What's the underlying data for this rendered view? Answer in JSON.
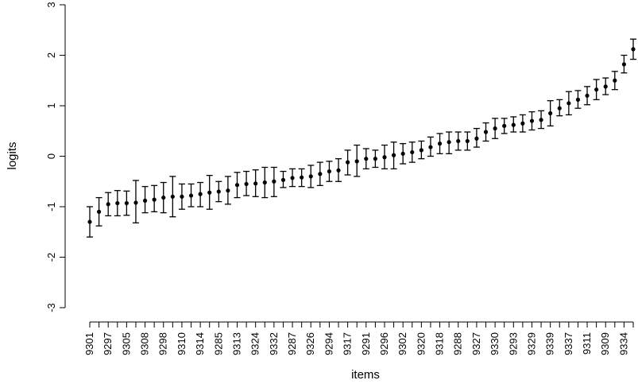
{
  "chart_data": {
    "type": "scatter",
    "style": "point-with-error-bars",
    "xlabel": "items",
    "ylabel": "logits",
    "ylim": [
      -3,
      3
    ],
    "yticks": [
      -3,
      -2,
      -1,
      0,
      1,
      2,
      3
    ],
    "x_tick_labels": [
      "9301",
      "9297",
      "9305",
      "9308",
      "9298",
      "9310",
      "9314",
      "9285",
      "9313",
      "9324",
      "9332",
      "9287",
      "9326",
      "9294",
      "9317",
      "9291",
      "9296",
      "9302",
      "9320",
      "9318",
      "9288",
      "9327",
      "9330",
      "9293",
      "9329",
      "9339",
      "9337",
      "9311",
      "9309",
      "9334"
    ],
    "grid": false,
    "legend": "none",
    "points": [
      {
        "estimate": -1.3,
        "lower": -1.6,
        "upper": -1.0
      },
      {
        "estimate": -1.1,
        "lower": -1.38,
        "upper": -0.82
      },
      {
        "estimate": -0.95,
        "lower": -1.18,
        "upper": -0.72
      },
      {
        "estimate": -0.93,
        "lower": -1.18,
        "upper": -0.68
      },
      {
        "estimate": -0.93,
        "lower": -1.17,
        "upper": -0.69
      },
      {
        "estimate": -0.92,
        "lower": -1.32,
        "upper": -0.48
      },
      {
        "estimate": -0.88,
        "lower": -1.12,
        "upper": -0.6
      },
      {
        "estimate": -0.86,
        "lower": -1.1,
        "upper": -0.58
      },
      {
        "estimate": -0.82,
        "lower": -1.12,
        "upper": -0.52
      },
      {
        "estimate": -0.8,
        "lower": -1.2,
        "upper": -0.4
      },
      {
        "estimate": -0.8,
        "lower": -1.05,
        "upper": -0.55
      },
      {
        "estimate": -0.78,
        "lower": -1.0,
        "upper": -0.55
      },
      {
        "estimate": -0.75,
        "lower": -1.0,
        "upper": -0.52
      },
      {
        "estimate": -0.72,
        "lower": -1.05,
        "upper": -0.38
      },
      {
        "estimate": -0.7,
        "lower": -0.9,
        "upper": -0.5
      },
      {
        "estimate": -0.68,
        "lower": -0.95,
        "upper": -0.4
      },
      {
        "estimate": -0.57,
        "lower": -0.82,
        "upper": -0.32
      },
      {
        "estimate": -0.55,
        "lower": -0.78,
        "upper": -0.3
      },
      {
        "estimate": -0.54,
        "lower": -0.8,
        "upper": -0.27
      },
      {
        "estimate": -0.52,
        "lower": -0.82,
        "upper": -0.22
      },
      {
        "estimate": -0.5,
        "lower": -0.8,
        "upper": -0.22
      },
      {
        "estimate": -0.47,
        "lower": -0.62,
        "upper": -0.3
      },
      {
        "estimate": -0.43,
        "lower": -0.6,
        "upper": -0.25
      },
      {
        "estimate": -0.42,
        "lower": -0.6,
        "upper": -0.25
      },
      {
        "estimate": -0.4,
        "lower": -0.62,
        "upper": -0.18
      },
      {
        "estimate": -0.35,
        "lower": -0.58,
        "upper": -0.12
      },
      {
        "estimate": -0.3,
        "lower": -0.5,
        "upper": -0.1
      },
      {
        "estimate": -0.28,
        "lower": -0.5,
        "upper": -0.05
      },
      {
        "estimate": -0.12,
        "lower": -0.37,
        "upper": 0.12
      },
      {
        "estimate": -0.1,
        "lower": -0.4,
        "upper": 0.22
      },
      {
        "estimate": -0.05,
        "lower": -0.25,
        "upper": 0.15
      },
      {
        "estimate": -0.05,
        "lower": -0.22,
        "upper": 0.12
      },
      {
        "estimate": -0.02,
        "lower": -0.25,
        "upper": 0.22
      },
      {
        "estimate": 0.02,
        "lower": -0.25,
        "upper": 0.28
      },
      {
        "estimate": 0.05,
        "lower": -0.15,
        "upper": 0.25
      },
      {
        "estimate": 0.08,
        "lower": -0.12,
        "upper": 0.28
      },
      {
        "estimate": 0.12,
        "lower": -0.05,
        "upper": 0.3
      },
      {
        "estimate": 0.18,
        "lower": 0.0,
        "upper": 0.38
      },
      {
        "estimate": 0.25,
        "lower": 0.05,
        "upper": 0.45
      },
      {
        "estimate": 0.28,
        "lower": 0.05,
        "upper": 0.48
      },
      {
        "estimate": 0.3,
        "lower": 0.12,
        "upper": 0.48
      },
      {
        "estimate": 0.3,
        "lower": 0.12,
        "upper": 0.48
      },
      {
        "estimate": 0.35,
        "lower": 0.18,
        "upper": 0.55
      },
      {
        "estimate": 0.48,
        "lower": 0.3,
        "upper": 0.66
      },
      {
        "estimate": 0.55,
        "lower": 0.35,
        "upper": 0.75
      },
      {
        "estimate": 0.6,
        "lower": 0.45,
        "upper": 0.75
      },
      {
        "estimate": 0.62,
        "lower": 0.48,
        "upper": 0.78
      },
      {
        "estimate": 0.65,
        "lower": 0.48,
        "upper": 0.82
      },
      {
        "estimate": 0.7,
        "lower": 0.52,
        "upper": 0.88
      },
      {
        "estimate": 0.72,
        "lower": 0.55,
        "upper": 0.9
      },
      {
        "estimate": 0.85,
        "lower": 0.6,
        "upper": 1.1
      },
      {
        "estimate": 0.95,
        "lower": 0.8,
        "upper": 1.12
      },
      {
        "estimate": 1.05,
        "lower": 0.82,
        "upper": 1.28
      },
      {
        "estimate": 1.12,
        "lower": 0.95,
        "upper": 1.3
      },
      {
        "estimate": 1.2,
        "lower": 1.02,
        "upper": 1.38
      },
      {
        "estimate": 1.32,
        "lower": 1.12,
        "upper": 1.52
      },
      {
        "estimate": 1.38,
        "lower": 1.22,
        "upper": 1.55
      },
      {
        "estimate": 1.5,
        "lower": 1.32,
        "upper": 1.68
      },
      {
        "estimate": 1.82,
        "lower": 1.65,
        "upper": 2.0
      },
      {
        "estimate": 2.12,
        "lower": 1.92,
        "upper": 2.32
      }
    ]
  }
}
